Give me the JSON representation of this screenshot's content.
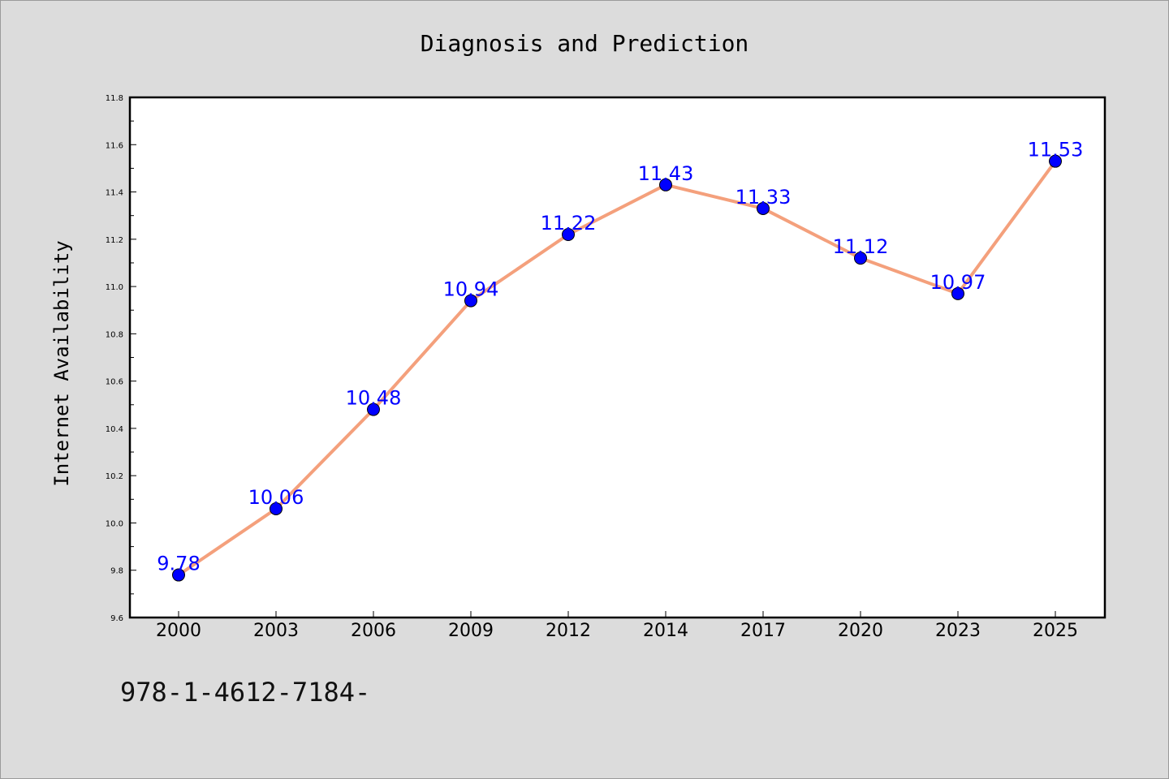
{
  "chart_data": {
    "type": "line",
    "title": "Diagnosis and Prediction",
    "xlabel": "",
    "ylabel": "Internet Availability",
    "categories": [
      "2000",
      "2003",
      "2006",
      "2009",
      "2012",
      "2014",
      "2017",
      "2020",
      "2023",
      "2025"
    ],
    "series": [
      {
        "values": [
          9.78,
          10.06,
          10.48,
          10.94,
          11.22,
          11.43,
          11.33,
          11.12,
          10.97,
          11.53
        ],
        "labels": [
          "9.78",
          "10.06",
          "10.48",
          "10.94",
          "11.22",
          "11.43",
          "11.33",
          "11.12",
          "10.97",
          "11.53"
        ],
        "line_color": "#f4a07c",
        "marker_color": "#0000ff"
      }
    ],
    "ylim": [
      9.6,
      11.8
    ],
    "yticks": [
      "9.6",
      "9.8",
      "10.0",
      "10.2",
      "10.4",
      "10.6",
      "10.8",
      "11.0",
      "11.2",
      "11.4",
      "11.6",
      "11.8"
    ],
    "grid": false,
    "legend": "none"
  },
  "footer": {
    "text": "978-1-4612-7184-"
  },
  "colors": {
    "background": "#dcdcdc",
    "plot_background": "#ffffff",
    "data_label": "#0000ff"
  }
}
